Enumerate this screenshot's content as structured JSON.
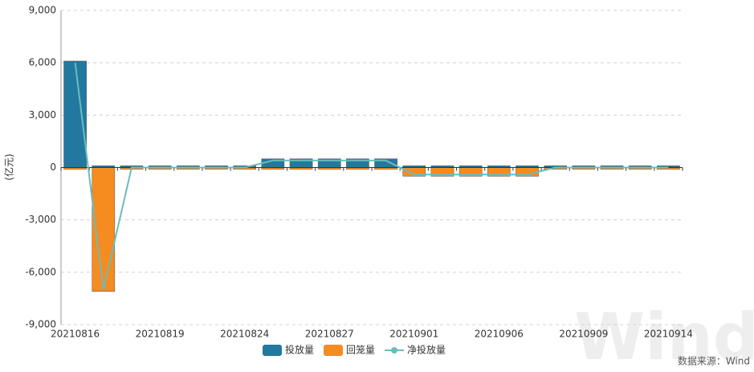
{
  "chart_data": {
    "type": "bar",
    "y_label": "(亿元)",
    "categories": [
      "20210816",
      null,
      null,
      "20210819",
      null,
      null,
      "20210824",
      null,
      null,
      "20210827",
      null,
      null,
      "20210901",
      null,
      null,
      "20210906",
      null,
      null,
      "20210909",
      null,
      null,
      "20210914"
    ],
    "series": [
      {
        "name": "投放量",
        "type": "bar",
        "color": "#21799f",
        "values": [
          6100,
          100,
          100,
          100,
          100,
          100,
          100,
          500,
          500,
          500,
          500,
          500,
          100,
          100,
          100,
          100,
          100,
          100,
          100,
          100,
          100,
          100
        ]
      },
      {
        "name": "回笼量",
        "type": "bar",
        "color": "#f68b1f",
        "values": [
          -100,
          -7100,
          -100,
          -100,
          -100,
          -100,
          -100,
          -100,
          -100,
          -100,
          -100,
          -100,
          -500,
          -500,
          -500,
          -500,
          -500,
          -100,
          -100,
          -100,
          -100,
          -100
        ]
      },
      {
        "name": "净投放量",
        "type": "line",
        "color": "#6bbcbc",
        "values": [
          6000,
          -7000,
          0,
          0,
          0,
          0,
          0,
          400,
          400,
          400,
          400,
          400,
          -400,
          -400,
          -400,
          -400,
          -400,
          0,
          0,
          0,
          0,
          0
        ]
      }
    ],
    "ylim": [
      -9000,
      9000
    ],
    "yticks": [
      {
        "value": -9000,
        "label": "-9,000"
      },
      {
        "value": -6000,
        "label": "-6,000"
      },
      {
        "value": -3000,
        "label": "-3,000"
      },
      0,
      {
        "value": 3000,
        "label": "3,000"
      },
      {
        "value": 6000,
        "label": "6,000"
      },
      {
        "value": 9000,
        "label": "9,000"
      }
    ],
    "grid": true,
    "legend": "bottom",
    "source": "数据来源：Wind",
    "watermark": "Wind"
  }
}
